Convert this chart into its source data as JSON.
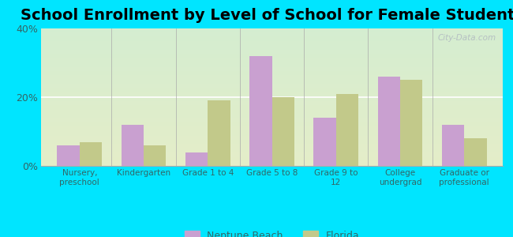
{
  "title": "School Enrollment by Level of School for Female Students",
  "categories": [
    "Nursery,\npreschool",
    "Kindergarten",
    "Grade 1 to 4",
    "Grade 5 to 8",
    "Grade 9 to\n12",
    "College\nundergrad",
    "Graduate or\nprofessional"
  ],
  "neptune_beach": [
    6,
    12,
    4,
    32,
    14,
    26,
    12
  ],
  "florida": [
    7,
    6,
    19,
    20,
    21,
    25,
    8
  ],
  "neptune_color": "#c9a0d0",
  "florida_color": "#c2c98a",
  "background_outer": "#00e5ff",
  "ylim": [
    0,
    40
  ],
  "yticks": [
    0,
    20,
    40
  ],
  "ytick_labels": [
    "0%",
    "20%",
    "40%"
  ],
  "bar_width": 0.35,
  "title_fontsize": 14,
  "legend_labels": [
    "Neptune Beach",
    "Florida"
  ],
  "watermark": "City-Data.com"
}
